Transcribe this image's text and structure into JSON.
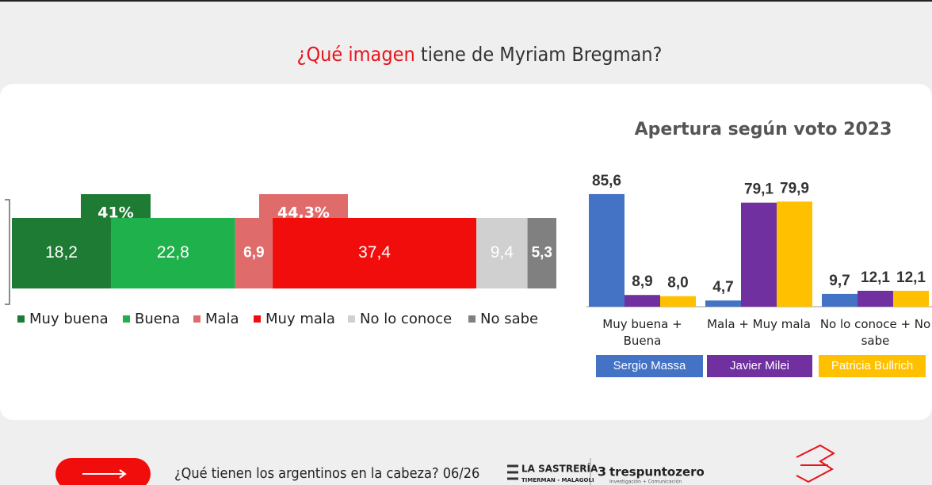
{
  "title": {
    "highlight": "¿Qué imagen",
    "rest": "tiene de Myriam Bregman?"
  },
  "chart_data": [
    {
      "type": "stacked-hbar",
      "xlim": [
        0,
        100
      ],
      "annotations": [
        "41%",
        "44,3%"
      ],
      "series": [
        {
          "name": "Muy buena",
          "color": "#1e7b34",
          "values": [
            18.2
          ],
          "value_labels": [
            "18,2"
          ]
        },
        {
          "name": "Buena",
          "color": "#1fb14c",
          "values": [
            22.8
          ],
          "value_labels": [
            "22,8"
          ]
        },
        {
          "name": "Mala",
          "color": "#e06b6b",
          "values": [
            6.9
          ],
          "value_labels": [
            "6,9"
          ]
        },
        {
          "name": "Muy mala",
          "color": "#f20d0d",
          "values": [
            37.4
          ],
          "value_labels": [
            "37,4"
          ]
        },
        {
          "name": "No lo conoce",
          "color": "#d0d0d0",
          "values": [
            9.4
          ],
          "value_labels": [
            "9,4"
          ]
        },
        {
          "name": "No sabe",
          "color": "#808080",
          "values": [
            5.3
          ],
          "value_labels": [
            "5,3"
          ]
        }
      ]
    },
    {
      "type": "grouped-bar",
      "title": "Apertura según voto 2023",
      "ylim": [
        0,
        100
      ],
      "categories": [
        "Muy buena + Buena",
        "Mala + Muy mala",
        "No lo conoce + No sabe"
      ],
      "series": [
        {
          "name": "Sergio Massa",
          "color": "#4472c4",
          "values": [
            85.6,
            4.7,
            9.7
          ],
          "value_labels": [
            "85,6",
            "4,7",
            "9,7"
          ]
        },
        {
          "name": "Javier Milei",
          "color": "#7030a0",
          "values": [
            8.9,
            79.1,
            12.1
          ],
          "value_labels": [
            "8,9",
            "79,1",
            "12,1"
          ]
        },
        {
          "name": "Patricia Bullrich",
          "color": "#ffc000",
          "values": [
            8.0,
            79.9,
            12.1
          ],
          "value_labels": [
            "8,0",
            "79,9",
            "12,1"
          ]
        }
      ]
    }
  ],
  "footer": {
    "caption": "¿Qué tienen los argentinos en la cabeza? 06/26",
    "logo1": {
      "name": "LA SASTRERÍA",
      "sub": "TIMERMAN - MALAGOLI"
    },
    "logo2": {
      "name": "trespuntozero",
      "sub": "Investigación + Comunicación"
    }
  }
}
